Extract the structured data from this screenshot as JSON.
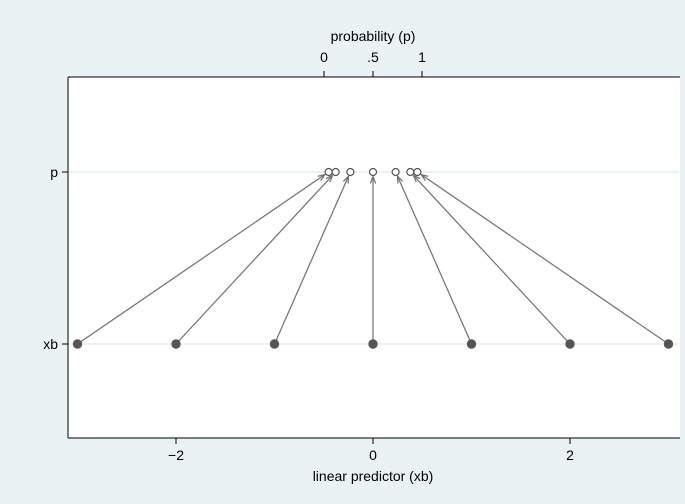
{
  "chart_data": {
    "type": "scatter",
    "top_axis": {
      "label": "probability (p)",
      "ticks": [
        {
          "value": 0,
          "label": "0"
        },
        {
          "value": 0.5,
          "label": ".5"
        },
        {
          "value": 1,
          "label": "1"
        }
      ],
      "range": [
        0,
        1
      ]
    },
    "x_axis": {
      "label": "linear predictor (xb)",
      "ticks": [
        {
          "value": -2,
          "label": "−2"
        },
        {
          "value": 0,
          "label": "0"
        },
        {
          "value": 2,
          "label": "2"
        }
      ],
      "range": [
        -3,
        3
      ]
    },
    "y_categories": [
      "p",
      "xb"
    ],
    "xb_values": [
      -3,
      -2,
      -1,
      0,
      1,
      2,
      3
    ],
    "p_values": [
      0.047,
      0.119,
      0.269,
      0.5,
      0.731,
      0.881,
      0.953
    ],
    "grid": true,
    "colors": {
      "plot_background": "#ffffff",
      "outer_background": "#eaf2f3",
      "marker": "#555555",
      "arrow": "#707070",
      "grid": "#e1e9ea"
    }
  }
}
